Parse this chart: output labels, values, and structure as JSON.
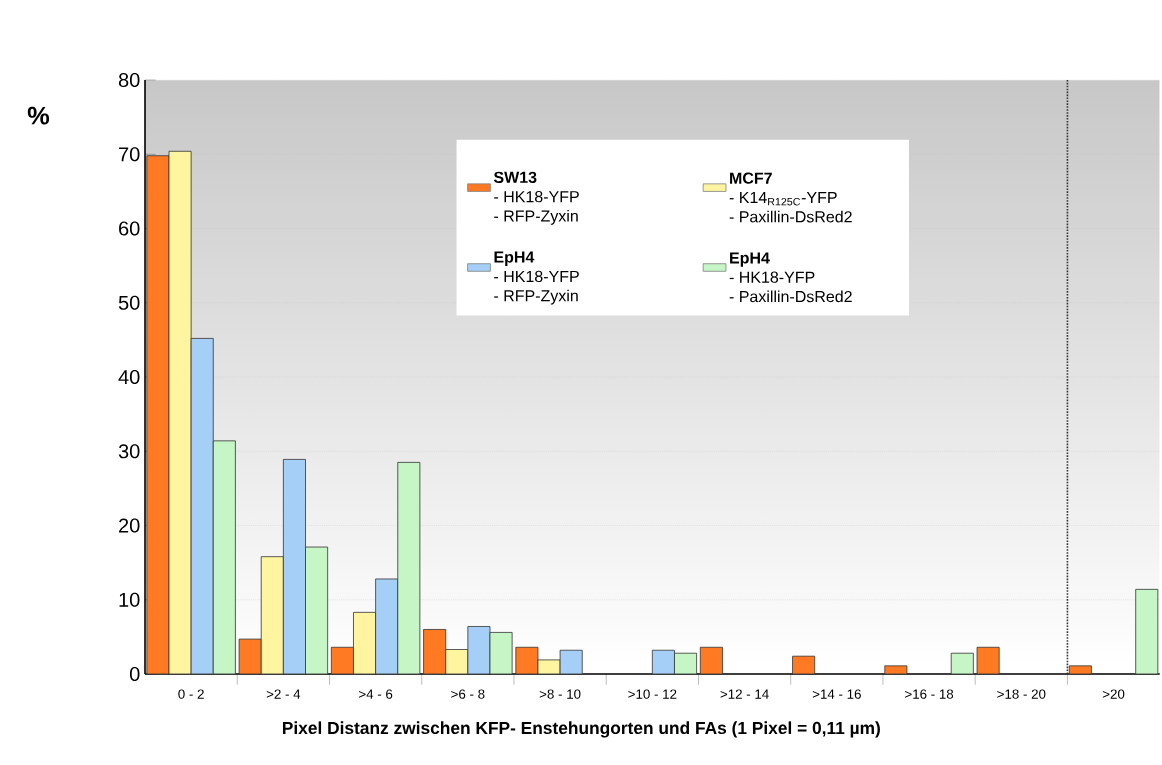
{
  "chart_data": {
    "type": "bar",
    "xlabel": "Pixel Distanz zwischen KFP- Enstehungorten und FAs (1 Pixel = 0,11 µm)",
    "ylabel": "%",
    "categories": [
      "0 - 2",
      ">2 - 4",
      ">4 - 6",
      ">6 - 8",
      ">8 - 10",
      ">10 - 12",
      ">12 - 14",
      ">14 - 16",
      ">16 - 18",
      ">18 - 20",
      ">20"
    ],
    "series": [
      {
        "name": "**SW13**\n- HK18-YFP\n- RFP-Zyxin",
        "color": "#ff7a22",
        "values": [
          69.8,
          4.7,
          3.6,
          6.0,
          3.6,
          0,
          3.6,
          2.4,
          1.1,
          3.6,
          1.1
        ]
      },
      {
        "name": "**MCF7**\n- K14$_{R125C}$-YFP\n- Paxillin-DsRed2",
        "color": "#fff5a0",
        "values": [
          70.4,
          15.8,
          8.3,
          3.3,
          1.9,
          0,
          0,
          0,
          0,
          0,
          0
        ]
      },
      {
        "name": "**EpH4**\n- HK18-YFP\n- RFP-Zyxin",
        "color": "#a6cff7",
        "values": [
          45.2,
          28.9,
          12.8,
          6.4,
          3.2,
          3.2,
          0,
          0,
          0,
          0,
          0
        ]
      },
      {
        "name": "**EpH4**\n- HK18-YFP\n- Paxillin-DsRed2",
        "color": "#c6f5c6",
        "values": [
          31.4,
          17.1,
          28.5,
          5.6,
          0,
          2.8,
          0,
          0,
          2.8,
          0,
          11.4
        ]
      }
    ],
    "ylim": [
      0,
      80
    ],
    "yticks": [
      0,
      10,
      20,
      30,
      40,
      50,
      60,
      70,
      80
    ],
    "grid": "y",
    "legend": "top",
    "ref_lines": [
      {
        "axis": "x",
        "value": ">20",
        "line_style": "dotted"
      }
    ]
  }
}
